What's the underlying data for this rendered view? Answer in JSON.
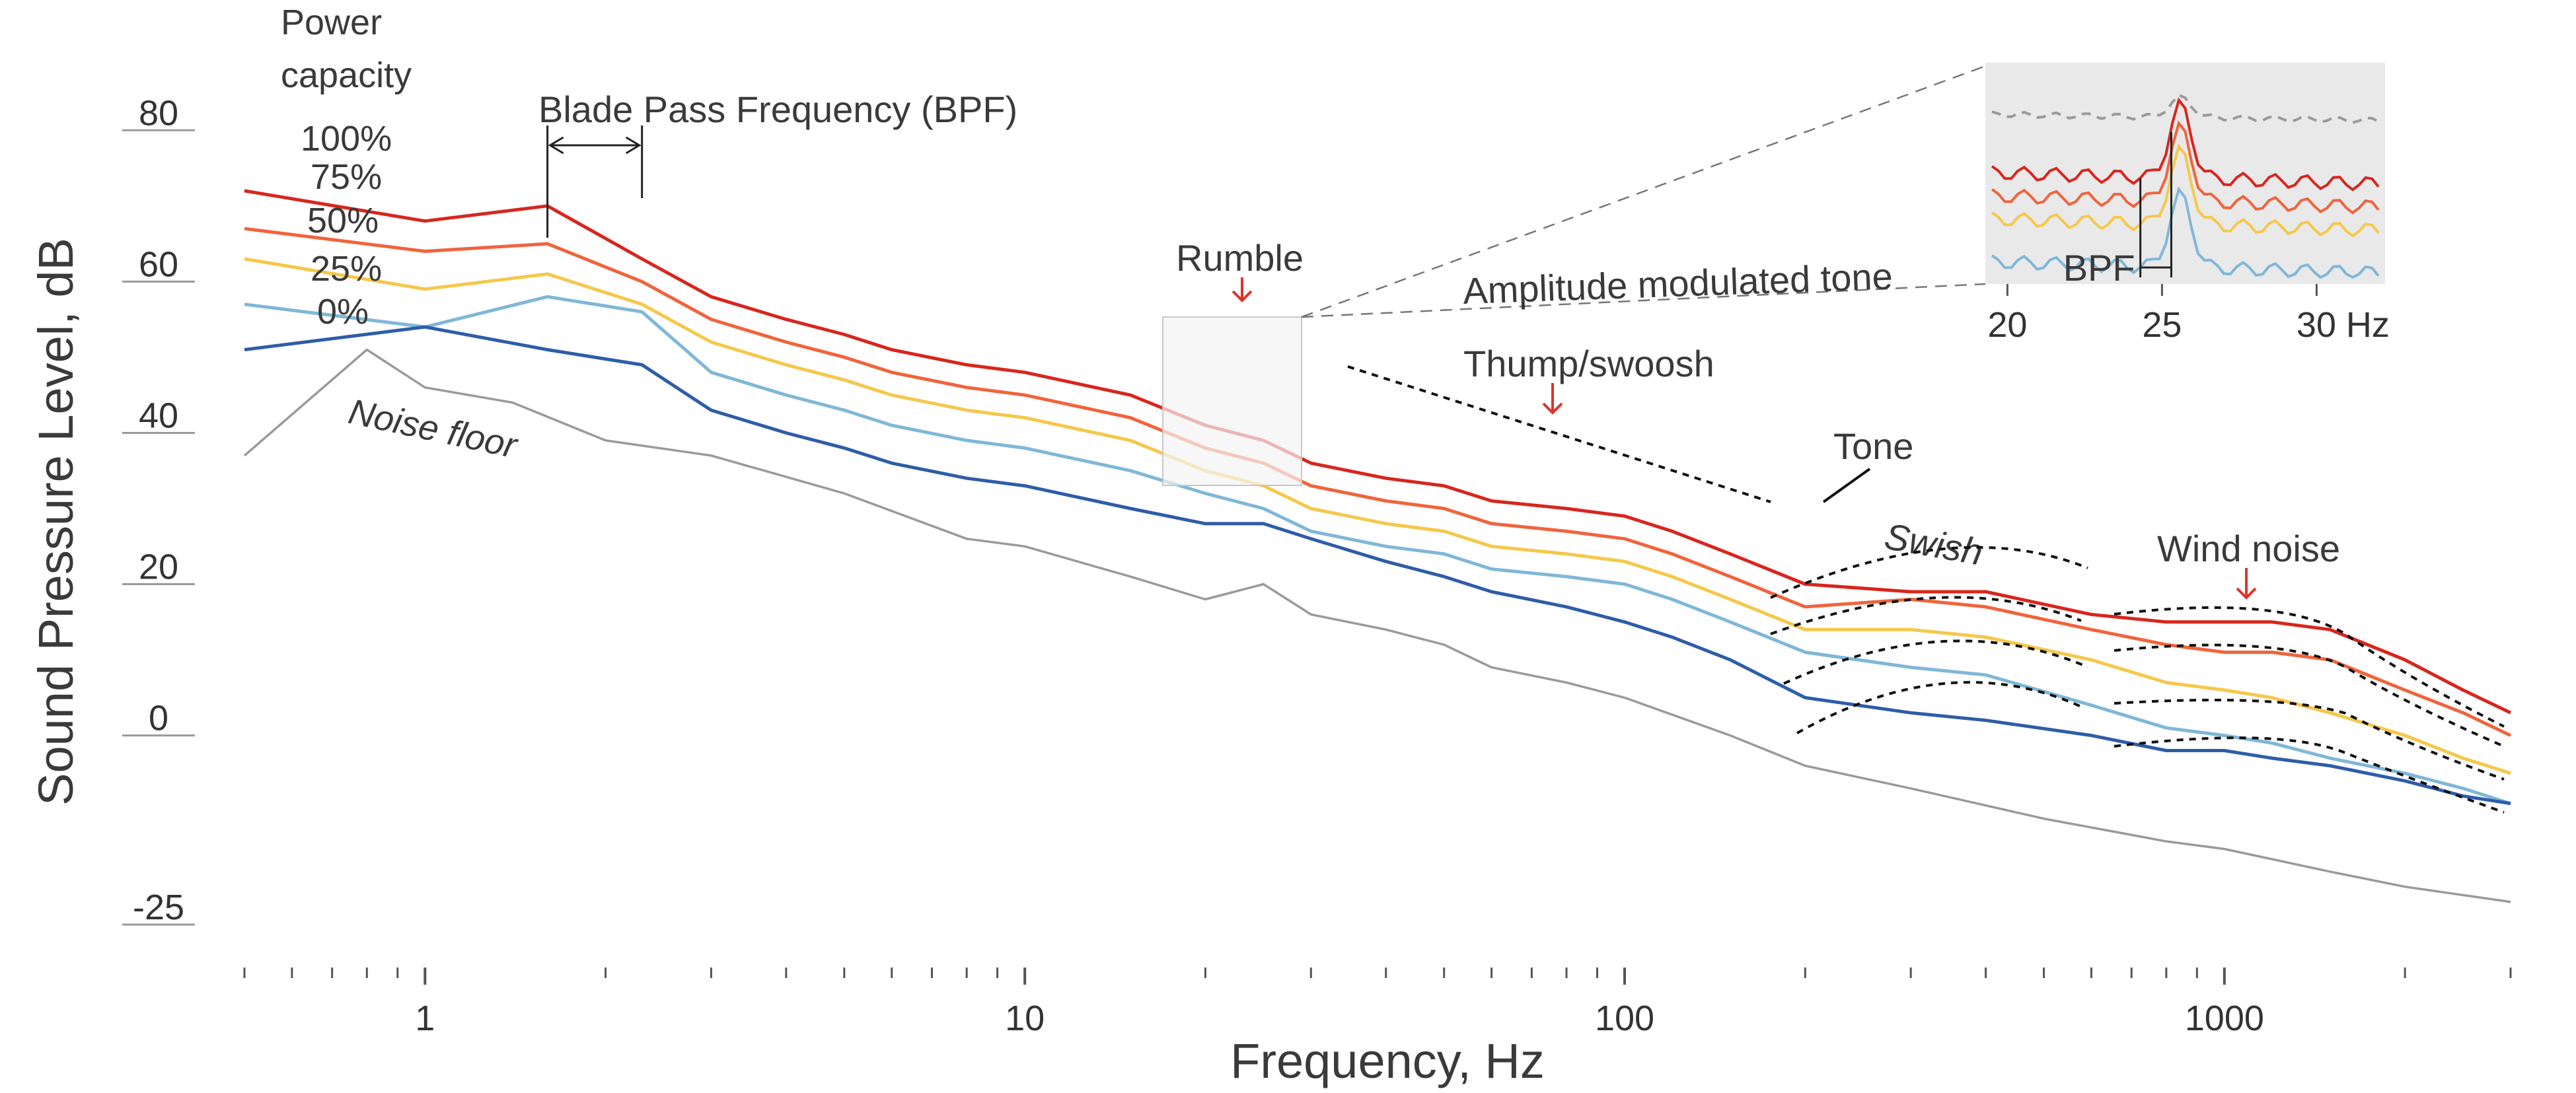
{
  "chart_data": {
    "type": "line",
    "title": "",
    "xlabel": "Frequency, Hz",
    "ylabel": "Sound Pressure Level, dB",
    "x_scale": "log",
    "xlim": [
      0.5,
      3000
    ],
    "ylim": [
      -25,
      85
    ],
    "x_ticks": [
      1,
      10,
      100,
      1000
    ],
    "y_ticks": [
      80,
      60,
      40,
      20,
      0,
      -25
    ],
    "legend": {
      "title": "Power capacity",
      "placement": "top-left, next to curves"
    },
    "series": [
      {
        "name": "100%",
        "color": "#d7261e",
        "x": [
          0.5,
          1,
          1.6,
          2.3,
          3,
          4,
          5,
          6,
          8,
          10,
          15,
          20,
          25,
          30,
          40,
          50,
          60,
          80,
          100,
          120,
          150,
          200,
          300,
          400,
          600,
          800,
          1000,
          1200,
          1500,
          2000,
          2500,
          3000
        ],
        "y": [
          72,
          68,
          70,
          63,
          58,
          55,
          53,
          51,
          49,
          48,
          45,
          41,
          39,
          36,
          34,
          33,
          31,
          30,
          29,
          27,
          24,
          20,
          19,
          19,
          16,
          15,
          15,
          15,
          14,
          10,
          6,
          3
        ]
      },
      {
        "name": "75%",
        "color": "#f0643c",
        "x": [
          0.5,
          1,
          1.6,
          2.3,
          3,
          4,
          5,
          6,
          8,
          10,
          15,
          20,
          25,
          30,
          40,
          50,
          60,
          80,
          100,
          120,
          150,
          200,
          300,
          400,
          600,
          800,
          1000,
          1200,
          1500,
          2000,
          2500,
          3000
        ],
        "y": [
          67,
          64,
          65,
          60,
          55,
          52,
          50,
          48,
          46,
          45,
          42,
          38,
          36,
          33,
          31,
          30,
          28,
          27,
          26,
          24,
          21,
          17,
          18,
          17,
          14,
          12,
          11,
          11,
          10,
          6,
          3,
          0
        ]
      },
      {
        "name": "50%",
        "color": "#f5c84a",
        "x": [
          0.5,
          1,
          1.6,
          2.3,
          3,
          4,
          5,
          6,
          8,
          10,
          15,
          20,
          25,
          30,
          40,
          50,
          60,
          80,
          100,
          120,
          150,
          200,
          300,
          400,
          600,
          800,
          1000,
          1200,
          1500,
          2000,
          2500,
          3000
        ],
        "y": [
          63,
          59,
          61,
          57,
          52,
          49,
          47,
          45,
          43,
          42,
          39,
          35,
          33,
          30,
          28,
          27,
          25,
          24,
          23,
          21,
          18,
          14,
          14,
          13,
          10,
          7,
          6,
          5,
          3,
          0,
          -3,
          -5
        ]
      },
      {
        "name": "25%",
        "color": "#7fb7d8",
        "x": [
          0.5,
          1,
          1.6,
          2.3,
          3,
          4,
          5,
          6,
          8,
          10,
          15,
          20,
          25,
          30,
          40,
          50,
          60,
          80,
          100,
          120,
          150,
          200,
          300,
          400,
          600,
          800,
          1000,
          1200,
          1500,
          2000,
          2500,
          3000
        ],
        "y": [
          57,
          54,
          58,
          56,
          48,
          45,
          43,
          41,
          39,
          38,
          35,
          32,
          30,
          27,
          25,
          24,
          22,
          21,
          20,
          18,
          15,
          11,
          9,
          8,
          4,
          1,
          0,
          -1,
          -3,
          -5,
          -7,
          -9
        ]
      },
      {
        "name": "0%",
        "color": "#2e5da8",
        "x": [
          0.5,
          1,
          1.6,
          2.3,
          3,
          4,
          5,
          6,
          8,
          10,
          15,
          20,
          25,
          30,
          40,
          50,
          60,
          80,
          100,
          120,
          150,
          200,
          300,
          400,
          600,
          800,
          1000,
          1200,
          1500,
          2000,
          2500,
          3000
        ],
        "y": [
          51,
          54,
          51,
          49,
          43,
          40,
          38,
          36,
          34,
          33,
          30,
          28,
          28,
          26,
          23,
          21,
          19,
          17,
          15,
          13,
          10,
          5,
          3,
          2,
          0,
          -2,
          -2,
          -3,
          -4,
          -6,
          -8,
          -9
        ]
      },
      {
        "name": "Noise floor",
        "color": "#9a9a9a",
        "x": [
          0.5,
          0.8,
          1,
          1.4,
          2,
          3,
          5,
          8,
          10,
          15,
          20,
          25,
          30,
          40,
          50,
          60,
          80,
          100,
          150,
          200,
          300,
          500,
          800,
          1000,
          1500,
          2000,
          3000
        ],
        "y": [
          37,
          51,
          46,
          44,
          39,
          37,
          32,
          26,
          25,
          21,
          18,
          20,
          16,
          14,
          12,
          9,
          7,
          5,
          0,
          -4,
          -7,
          -11,
          -14,
          -15,
          -18,
          -20,
          -22
        ]
      }
    ],
    "annotations": [
      {
        "text": "Blade Pass Frequency (BPF)",
        "x": 1.6,
        "x2": 2.3
      },
      {
        "text": "Rumble",
        "x": 25
      },
      {
        "text": "Amplitude modulated tone"
      },
      {
        "text": "Thump/swoosh",
        "x": 80
      },
      {
        "text": "Tone",
        "x": 220
      },
      {
        "text": "Swish",
        "x": 380
      },
      {
        "text": "Wind noise",
        "x": 1100
      }
    ],
    "inset": {
      "description_label": "BPF",
      "x_ticks": [
        "20",
        "25",
        "30 Hz"
      ]
    }
  }
}
